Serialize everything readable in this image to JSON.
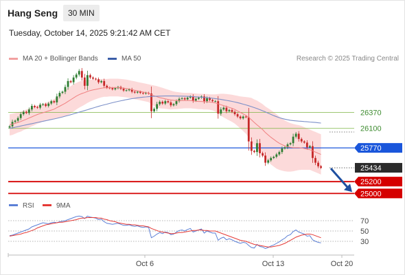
{
  "header": {
    "title": "Hang Seng",
    "timeframe": "30 MIN"
  },
  "timestamp": "Tuesday, October 14, 2025 9:21:42 AM CET",
  "legend": [
    {
      "label": "MA 20 + Bollinger Bands",
      "color": "#f2a0a0"
    },
    {
      "label": "MA 50",
      "color": "#3b5ea8"
    }
  ],
  "credit": "Research © 2025 Trading Central",
  "colors": {
    "up": "#2e7d32",
    "down": "#c62828",
    "band": "#fbd3d3",
    "ma20": "#f08080",
    "ma50": "#7b8fc8"
  },
  "chart_data": [
    {
      "type": "candlestick",
      "x_ticks": [
        "Oct 6",
        "Oct 13",
        "Oct 20"
      ],
      "ylim": [
        24900,
        27050
      ],
      "levels": [
        {
          "value": 26370,
          "label": "26370",
          "kind": "resistance",
          "color": "#7cb342"
        },
        {
          "value": 26100,
          "label": "26100",
          "kind": "resistance",
          "color": "#7cb342"
        },
        {
          "value": 25770,
          "label": "25770",
          "kind": "pivot",
          "color": "#1a56db"
        },
        {
          "value": 25434,
          "label": "25434",
          "kind": "last",
          "color": "#2b2b2b"
        },
        {
          "value": 25200,
          "label": "25200",
          "kind": "support",
          "color": "#d50000"
        },
        {
          "value": 25000,
          "label": "25000",
          "kind": "support",
          "color": "#d50000"
        }
      ],
      "close": [
        26135,
        26210,
        26230,
        26275,
        26340,
        26380,
        26360,
        26420,
        26480,
        26460,
        26450,
        26500,
        26510,
        26480,
        26520,
        26560,
        26540,
        26640,
        26700,
        26720,
        26800,
        26900,
        26880,
        26960,
        27010,
        27070,
        26960,
        26820,
        27000,
        26960,
        26940,
        26930,
        26880,
        26900,
        26820,
        26790,
        26780,
        26760,
        26780,
        26800,
        26770,
        26740,
        26745,
        26760,
        26720,
        26705,
        26720,
        26700,
        26690,
        26700,
        26690,
        26390,
        26430,
        26510,
        26550,
        26520,
        26560,
        26540,
        26490,
        26510,
        26560,
        26600,
        26610,
        26590,
        26620,
        26640,
        26570,
        26600,
        26620,
        26640,
        26560,
        26610,
        26580,
        26560,
        26560,
        26350,
        26420,
        26450,
        26390,
        26410,
        26380,
        26340,
        26300,
        26270,
        26300,
        26290,
        25880,
        25720,
        25700,
        25850,
        25680,
        25640,
        25520,
        25560,
        25600,
        25620,
        25660,
        25700,
        25760,
        25780,
        25830,
        25850,
        25960,
        26010,
        25920,
        25880,
        25860,
        25780,
        25800,
        25600,
        25520,
        25460,
        25434
      ],
      "ma20": [
        26160,
        26170,
        26185,
        26200,
        26215,
        26235,
        26255,
        26275,
        26295,
        26315,
        26335,
        26350,
        26365,
        26380,
        26395,
        26410,
        26425,
        26450,
        26475,
        26500,
        26525,
        26555,
        26585,
        26615,
        26645,
        26670,
        26690,
        26705,
        26725,
        26740,
        26750,
        26760,
        26770,
        26780,
        26785,
        26785,
        26790,
        26790,
        26790,
        26790,
        26785,
        26780,
        26775,
        26765,
        26755,
        26745,
        26735,
        26725,
        26715,
        26705,
        26695,
        26670,
        26650,
        26635,
        26620,
        26610,
        26600,
        26590,
        26580,
        26575,
        26570,
        26570,
        26570,
        26570,
        26570,
        26570,
        26565,
        26560,
        26555,
        26555,
        26550,
        26550,
        26545,
        26540,
        26530,
        26515,
        26500,
        26485,
        26470,
        26455,
        26440,
        26420,
        26395,
        26370,
        26345,
        26320,
        26285,
        26245,
        26200,
        26160,
        26120,
        26080,
        26030,
        25990,
        25950,
        25915,
        25880,
        25850,
        25825,
        25805,
        25790,
        25780,
        25775,
        25775,
        25775,
        25770,
        25760,
        25750,
        25740,
        25720,
        25700,
        25680,
        25660
      ],
      "ma50": [
        26100,
        26110,
        26120,
        26130,
        26140,
        26150,
        26160,
        26170,
        26180,
        26190,
        26200,
        26210,
        26220,
        26230,
        26240,
        26250,
        26260,
        26270,
        26282,
        26294,
        26306,
        26318,
        26332,
        26346,
        26360,
        26374,
        26388,
        26402,
        26416,
        26430,
        26444,
        26458,
        26472,
        26486,
        26498,
        26510,
        26522,
        26534,
        26546,
        26556,
        26566,
        26576,
        26586,
        26594,
        26602,
        26610,
        26616,
        26622,
        26628,
        26632,
        26636,
        26640,
        26642,
        26644,
        26646,
        26647,
        26648,
        26648,
        26648,
        26648,
        26647,
        26646,
        26645,
        26644,
        26642,
        26640,
        26637,
        26634,
        26631,
        26628,
        26624,
        26620,
        26615,
        26610,
        26604,
        26597,
        26590,
        26582,
        26574,
        26565,
        26556,
        26546,
        26535,
        26523,
        26510,
        26497,
        26483,
        26468,
        26452,
        26435,
        26417,
        26398,
        26378,
        26357,
        26336,
        26316,
        26298,
        26282,
        26268,
        26256,
        26246,
        26238,
        26232,
        26227,
        26223,
        26220,
        26216,
        26212,
        26208,
        26204,
        26200,
        26195,
        26190
      ],
      "band_width": [
        180,
        180,
        175,
        170,
        170,
        165,
        165,
        160,
        160,
        160,
        155,
        155,
        150,
        150,
        155,
        160,
        170,
        180,
        195,
        210,
        220,
        230,
        230,
        230,
        225,
        220,
        215,
        205,
        195,
        185,
        175,
        165,
        160,
        155,
        150,
        150,
        150,
        150,
        150,
        150,
        150,
        150,
        150,
        150,
        150,
        150,
        150,
        150,
        150,
        150,
        150,
        165,
        175,
        180,
        180,
        175,
        170,
        165,
        160,
        150,
        145,
        140,
        135,
        130,
        130,
        130,
        130,
        130,
        130,
        130,
        130,
        130,
        130,
        135,
        145,
        165,
        185,
        200,
        210,
        220,
        230,
        240,
        255,
        270,
        290,
        310,
        340,
        370,
        390,
        410,
        420,
        430,
        440,
        450,
        460,
        460,
        460,
        450,
        440,
        430,
        420,
        410,
        400,
        390,
        380,
        370,
        360,
        350,
        340,
        340,
        340,
        340,
        340
      ],
      "rsi_panel": {
        "levels": [
          70,
          50,
          30
        ],
        "legend": [
          {
            "label": "RSI",
            "color": "#5b7fd6"
          },
          {
            "label": "9MA",
            "color": "#e53935"
          }
        ],
        "rsi": [
          41,
          42,
          44,
          46,
          48,
          50,
          52,
          54,
          58,
          60,
          62,
          64,
          66,
          65,
          64,
          66,
          67,
          66,
          68,
          69,
          70,
          72,
          74,
          76,
          78,
          79,
          78,
          74,
          79,
          77,
          76,
          75,
          72,
          73,
          68,
          65,
          64,
          63,
          64,
          65,
          63,
          61,
          61,
          62,
          60,
          59,
          60,
          58,
          57,
          58,
          57,
          37,
          40,
          44,
          47,
          45,
          48,
          47,
          43,
          44,
          48,
          51,
          52,
          50,
          53,
          55,
          48,
          50,
          52,
          54,
          46,
          50,
          48,
          46,
          46,
          32,
          36,
          38,
          33,
          35,
          33,
          30,
          28,
          26,
          28,
          27,
          22,
          18,
          17,
          24,
          20,
          19,
          16,
          18,
          21,
          23,
          26,
          29,
          33,
          36,
          41,
          43,
          49,
          52,
          48,
          46,
          44,
          40,
          41,
          33,
          30,
          28,
          27
        ],
        "ma9": [
          40,
          41,
          42,
          43,
          44,
          46,
          47,
          49,
          51,
          53,
          56,
          58,
          60,
          62,
          63,
          64,
          65,
          66,
          67,
          67,
          68,
          69,
          70,
          71,
          72,
          74,
          75,
          75,
          76,
          76,
          76,
          76,
          75,
          75,
          73,
          72,
          70,
          69,
          68,
          66,
          65,
          64,
          63,
          63,
          62,
          62,
          61,
          60,
          60,
          59,
          58,
          55,
          53,
          51,
          49,
          48,
          47,
          46,
          45,
          45,
          46,
          47,
          47,
          48,
          49,
          50,
          51,
          51,
          52,
          52,
          51,
          51,
          50,
          50,
          50,
          48,
          46,
          44,
          42,
          40,
          38,
          36,
          34,
          32,
          31,
          30,
          28,
          26,
          24,
          23,
          22,
          21,
          20,
          19,
          19,
          20,
          21,
          22,
          24,
          26,
          29,
          32,
          35,
          38,
          40,
          42,
          43,
          44,
          44,
          43,
          41,
          39,
          37
        ]
      }
    }
  ]
}
